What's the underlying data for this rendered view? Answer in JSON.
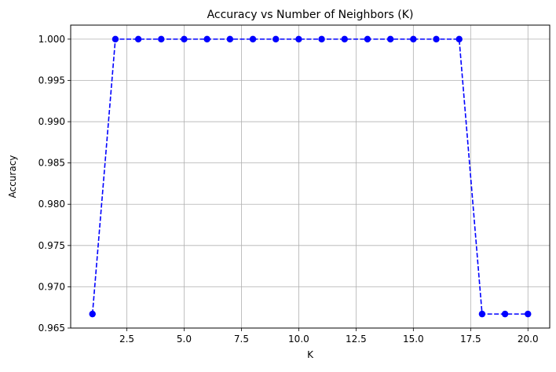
{
  "chart_data": {
    "type": "line",
    "title": "Accuracy vs Number of Neighbors (K)",
    "xlabel": "K",
    "ylabel": "Accuracy",
    "xlim": [
      0.05,
      20.95
    ],
    "ylim": [
      0.965,
      1.0017
    ],
    "xticks": [
      2.5,
      5.0,
      7.5,
      10.0,
      12.5,
      15.0,
      17.5,
      20.0
    ],
    "xtick_labels": [
      "2.5",
      "5.0",
      "7.5",
      "10.0",
      "12.5",
      "15.0",
      "17.5",
      "20.0"
    ],
    "yticks": [
      0.965,
      0.97,
      0.975,
      0.98,
      0.985,
      0.99,
      0.995,
      1.0
    ],
    "ytick_labels": [
      "0.965",
      "0.970",
      "0.975",
      "0.980",
      "0.985",
      "0.990",
      "0.995",
      "1.000"
    ],
    "grid": true,
    "series": [
      {
        "color": "#0000ff",
        "line_style": "dashed",
        "marker": "circle",
        "x": [
          1,
          2,
          3,
          4,
          5,
          6,
          7,
          8,
          9,
          10,
          11,
          12,
          13,
          14,
          15,
          16,
          17,
          18,
          19,
          20
        ],
        "values": [
          0.9667,
          1.0,
          1.0,
          1.0,
          1.0,
          1.0,
          1.0,
          1.0,
          1.0,
          1.0,
          1.0,
          1.0,
          1.0,
          1.0,
          1.0,
          1.0,
          1.0,
          0.9667,
          0.9667,
          0.9667
        ]
      }
    ]
  }
}
